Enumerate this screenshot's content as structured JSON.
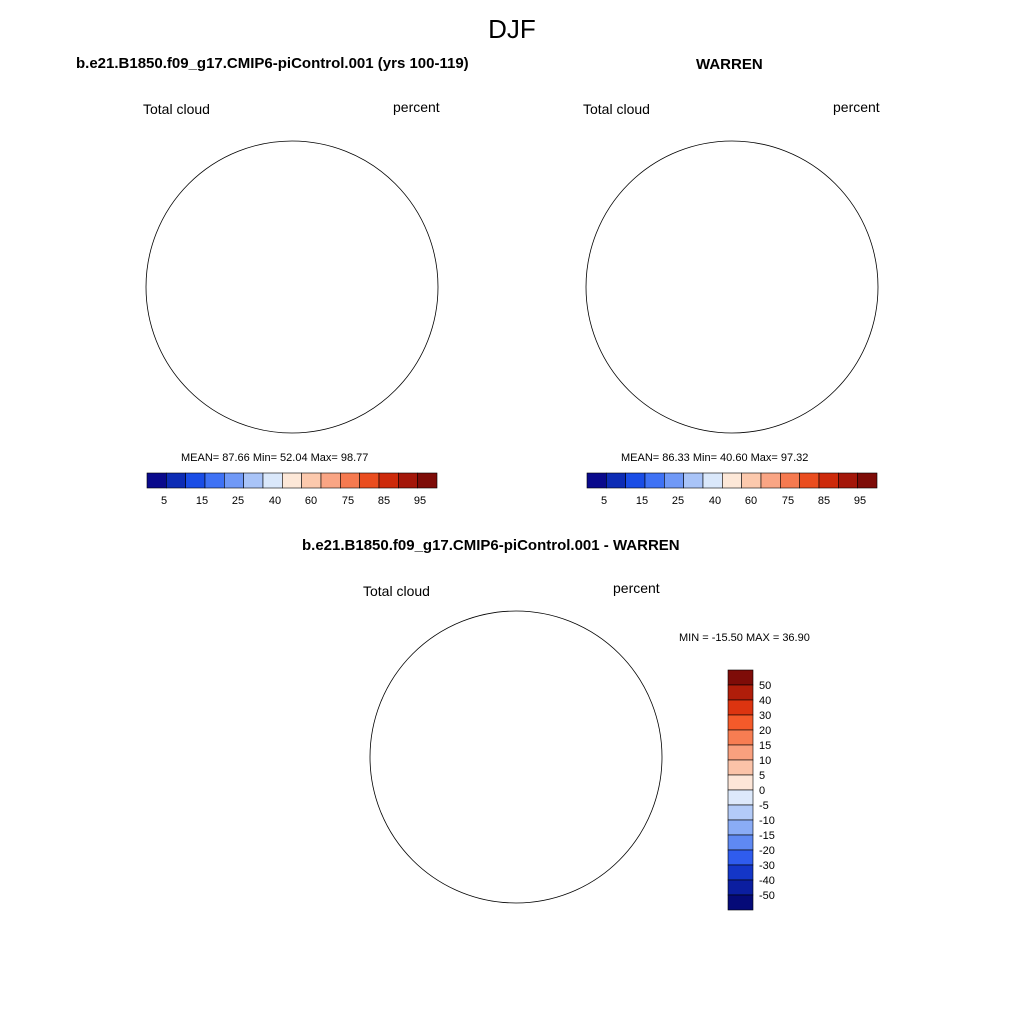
{
  "figure": {
    "season": "DJF"
  },
  "panels": [
    {
      "title": "b.e21.B1850.f09_g17.CMIP6-piControl.001 (yrs 100-119)",
      "left_label": "Total cloud",
      "right_label": "percent",
      "stats": "MEAN=  87.66  Min=  52.04  Max=  98.77"
    },
    {
      "title": "WARREN",
      "left_label": "Total cloud",
      "right_label": "percent",
      "stats": "MEAN=  86.33  Min=  40.60  Max=  97.32"
    },
    {
      "title": "b.e21.B1850.f09_g17.CMIP6-piControl.001 - WARREN",
      "left_label": "Total cloud",
      "right_label": "percent",
      "stats": "MIN = -15.50 MAX =  36.90"
    }
  ],
  "colorbar_abs": {
    "tick_labels": [
      "5",
      "15",
      "25",
      "40",
      "60",
      "75",
      "85",
      "95"
    ],
    "colors": [
      "#0a0a8c",
      "#0d2cb5",
      "#1a4de6",
      "#3f72f5",
      "#7099f7",
      "#a9c4f8",
      "#dae8fb",
      "#fde8d8",
      "#fcc9ad",
      "#f9a584",
      "#f67a50",
      "#ea4d1f",
      "#cd2a0b",
      "#a4170a",
      "#7e0c08"
    ]
  },
  "colorbar_diff": {
    "tick_labels": [
      "50",
      "40",
      "30",
      "20",
      "15",
      "10",
      "5",
      "0",
      "-5",
      "-10",
      "-15",
      "-20",
      "-30",
      "-40",
      "-50"
    ],
    "colors": [
      "#7e0c08",
      "#b01d0a",
      "#dc3410",
      "#f45a2a",
      "#f77d52",
      "#f9a07e",
      "#fbc3a8",
      "#fde6d8",
      "#dde9fb",
      "#b3cbf8",
      "#8aacf6",
      "#5f89f3",
      "#2f5cee",
      "#1436c8",
      "#0b1ea0",
      "#050a78"
    ]
  },
  "map_colors": {
    "abs_95": "#8a0b06",
    "abs_85": "#b7250a",
    "abs_75": "#dd3a12",
    "abs_70": "#f06a3e",
    "abs_65": "#f9977a",
    "abs_60": "#fcc0a4",
    "abs_55": "#fde4d4",
    "diff_pos5": "#fbd6c4",
    "diff_pos10": "#f9b89a",
    "diff_pos15": "#f48860",
    "diff_pos20": "#e2431f",
    "diff_neg5": "#cfe0fb",
    "diff_neg15": "#5b85f0"
  }
}
